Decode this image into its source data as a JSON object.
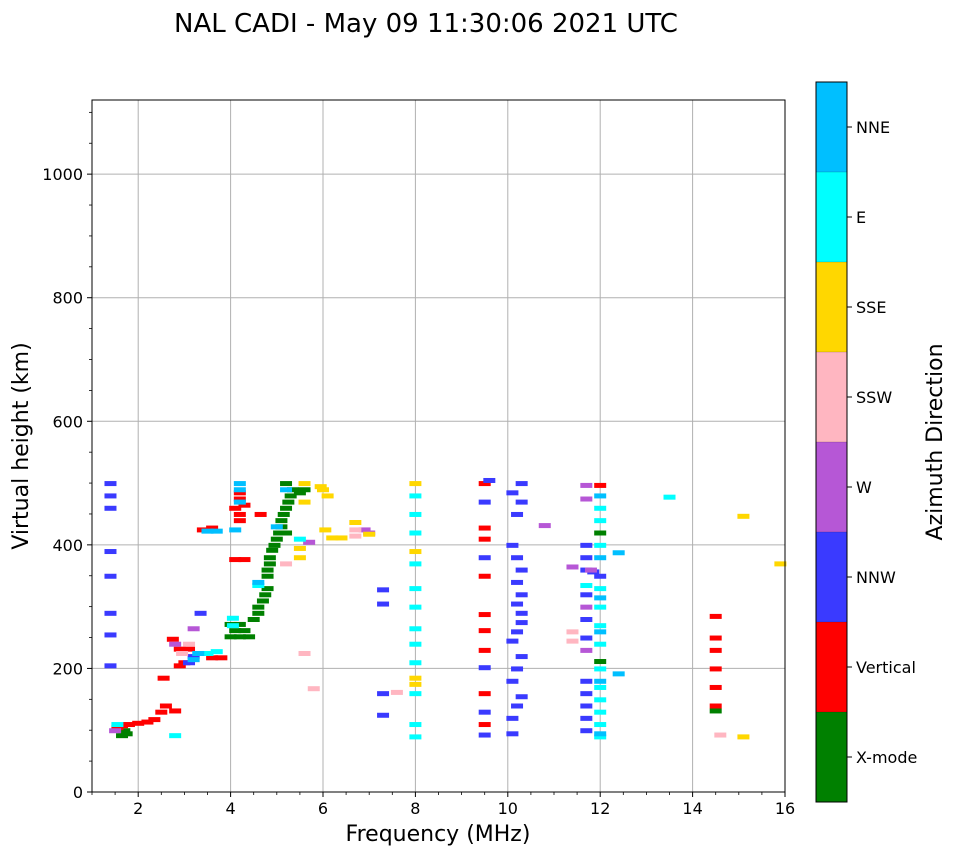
{
  "chart_data": {
    "type": "scatter",
    "title": "NAL CADI - May 09 11:30:06 2021 UTC",
    "xlabel": "Frequency (MHz)",
    "ylabel": "Virtual height (km)",
    "xlim": [
      1,
      16
    ],
    "ylim": [
      0,
      1120
    ],
    "xticks": [
      2,
      4,
      6,
      8,
      10,
      12,
      14,
      16
    ],
    "yticks": [
      0,
      200,
      400,
      600,
      800,
      1000
    ],
    "grid": true,
    "colorbar": {
      "label": "Azimuth Direction",
      "categories": [
        {
          "name": "X-mode",
          "color": "#008000"
        },
        {
          "name": "Vertical",
          "color": "#ff0000"
        },
        {
          "name": "NNW",
          "color": "#3a3aff"
        },
        {
          "name": "W",
          "color": "#b657d6"
        },
        {
          "name": "SSW",
          "color": "#ffb6c1"
        },
        {
          "name": "SSE",
          "color": "#ffd700"
        },
        {
          "name": "E",
          "color": "#00ffff"
        },
        {
          "name": "NNE",
          "color": "#00bfff"
        }
      ]
    },
    "series": [
      {
        "name": "X-mode",
        "points": [
          [
            1.65,
            92
          ],
          [
            1.75,
            95
          ],
          [
            1.7,
            100
          ],
          [
            4.0,
            252
          ],
          [
            4.2,
            252
          ],
          [
            4.4,
            252
          ],
          [
            4.1,
            262
          ],
          [
            4.3,
            262
          ],
          [
            4.0,
            272
          ],
          [
            4.2,
            272
          ],
          [
            4.5,
            280
          ],
          [
            4.6,
            290
          ],
          [
            4.6,
            300
          ],
          [
            4.7,
            310
          ],
          [
            4.75,
            320
          ],
          [
            4.8,
            330
          ],
          [
            4.8,
            350
          ],
          [
            4.8,
            360
          ],
          [
            4.85,
            370
          ],
          [
            4.85,
            380
          ],
          [
            4.9,
            392
          ],
          [
            4.95,
            400
          ],
          [
            5.0,
            410
          ],
          [
            5.05,
            420
          ],
          [
            5.1,
            430
          ],
          [
            5.1,
            440
          ],
          [
            5.15,
            450
          ],
          [
            5.2,
            460
          ],
          [
            5.25,
            470
          ],
          [
            5.3,
            480
          ],
          [
            5.35,
            490
          ],
          [
            5.2,
            500
          ],
          [
            5.5,
            485
          ],
          [
            5.6,
            490
          ],
          [
            5.2,
            420
          ],
          [
            14.5,
            132
          ],
          [
            12.0,
            420
          ],
          [
            12.0,
            212
          ]
        ]
      },
      {
        "name": "Vertical",
        "points": [
          [
            1.55,
            105
          ],
          [
            1.65,
            108
          ],
          [
            1.8,
            110
          ],
          [
            2.0,
            112
          ],
          [
            2.2,
            114
          ],
          [
            2.35,
            118
          ],
          [
            2.5,
            130
          ],
          [
            2.55,
            185
          ],
          [
            2.6,
            140
          ],
          [
            2.8,
            132
          ],
          [
            2.9,
            205
          ],
          [
            3.0,
            210
          ],
          [
            2.9,
            232
          ],
          [
            3.1,
            232
          ],
          [
            2.75,
            248
          ],
          [
            3.6,
            218
          ],
          [
            3.8,
            218
          ],
          [
            3.4,
            425
          ],
          [
            3.6,
            428
          ],
          [
            4.2,
            440
          ],
          [
            4.2,
            450
          ],
          [
            4.1,
            460
          ],
          [
            4.3,
            465
          ],
          [
            4.2,
            475
          ],
          [
            4.2,
            485
          ],
          [
            4.1,
            377
          ],
          [
            4.3,
            377
          ],
          [
            4.65,
            450
          ],
          [
            9.5,
            110
          ],
          [
            9.5,
            160
          ],
          [
            9.5,
            230
          ],
          [
            9.5,
            262
          ],
          [
            9.5,
            288
          ],
          [
            9.5,
            350
          ],
          [
            9.5,
            410
          ],
          [
            9.5,
            428
          ],
          [
            9.5,
            500
          ],
          [
            12.0,
            497
          ],
          [
            14.5,
            140
          ],
          [
            14.5,
            170
          ],
          [
            14.5,
            200
          ],
          [
            14.5,
            230
          ],
          [
            14.5,
            250
          ],
          [
            14.5,
            285
          ]
        ]
      },
      {
        "name": "NNW",
        "points": [
          [
            1.4,
            460
          ],
          [
            1.4,
            480
          ],
          [
            1.4,
            500
          ],
          [
            1.4,
            390
          ],
          [
            1.4,
            350
          ],
          [
            1.4,
            290
          ],
          [
            1.4,
            255
          ],
          [
            1.4,
            205
          ],
          [
            3.1,
            210
          ],
          [
            3.2,
            220
          ],
          [
            3.35,
            290
          ],
          [
            7.3,
            125
          ],
          [
            7.3,
            160
          ],
          [
            7.3,
            305
          ],
          [
            7.3,
            328
          ],
          [
            9.5,
            93
          ],
          [
            9.5,
            130
          ],
          [
            9.5,
            202
          ],
          [
            9.5,
            380
          ],
          [
            9.5,
            470
          ],
          [
            9.6,
            505
          ],
          [
            10.1,
            95
          ],
          [
            10.1,
            120
          ],
          [
            10.2,
            140
          ],
          [
            10.3,
            155
          ],
          [
            10.1,
            180
          ],
          [
            10.2,
            200
          ],
          [
            10.3,
            220
          ],
          [
            10.1,
            245
          ],
          [
            10.2,
            260
          ],
          [
            10.3,
            275
          ],
          [
            10.3,
            290
          ],
          [
            10.2,
            305
          ],
          [
            10.3,
            320
          ],
          [
            10.2,
            340
          ],
          [
            10.3,
            360
          ],
          [
            10.2,
            380
          ],
          [
            10.1,
            400
          ],
          [
            10.2,
            450
          ],
          [
            10.3,
            470
          ],
          [
            10.1,
            485
          ],
          [
            10.3,
            500
          ],
          [
            11.7,
            100
          ],
          [
            11.7,
            120
          ],
          [
            11.7,
            140
          ],
          [
            11.7,
            160
          ],
          [
            11.7,
            180
          ],
          [
            11.7,
            250
          ],
          [
            11.7,
            280
          ],
          [
            11.7,
            320
          ],
          [
            11.7,
            360
          ],
          [
            11.7,
            380
          ],
          [
            11.7,
            400
          ],
          [
            11.85,
            357
          ],
          [
            12.0,
            350
          ]
        ]
      },
      {
        "name": "W",
        "points": [
          [
            1.5,
            100
          ],
          [
            2.8,
            240
          ],
          [
            3.2,
            265
          ],
          [
            5.7,
            405
          ],
          [
            6.9,
            425
          ],
          [
            7.0,
            420
          ],
          [
            10.8,
            432
          ],
          [
            11.4,
            365
          ],
          [
            11.7,
            300
          ],
          [
            11.7,
            230
          ],
          [
            11.7,
            475
          ],
          [
            11.7,
            497
          ],
          [
            11.8,
            360
          ]
        ]
      },
      {
        "name": "SSW",
        "points": [
          [
            2.95,
            225
          ],
          [
            3.1,
            240
          ],
          [
            5.2,
            370
          ],
          [
            5.6,
            225
          ],
          [
            6.7,
            415
          ],
          [
            6.7,
            425
          ],
          [
            7.6,
            162
          ],
          [
            11.4,
            245
          ],
          [
            11.4,
            260
          ],
          [
            14.6,
            93
          ],
          [
            5.8,
            168
          ]
        ]
      },
      {
        "name": "SSE",
        "points": [
          [
            5.6,
            500
          ],
          [
            5.95,
            495
          ],
          [
            6.0,
            490
          ],
          [
            6.1,
            480
          ],
          [
            6.05,
            425
          ],
          [
            6.2,
            412
          ],
          [
            6.4,
            412
          ],
          [
            6.7,
            437
          ],
          [
            7.0,
            418
          ],
          [
            8.0,
            500
          ],
          [
            8.0,
            390
          ],
          [
            8.0,
            185
          ],
          [
            8.0,
            175
          ],
          [
            15.1,
            90
          ],
          [
            15.1,
            447
          ],
          [
            15.9,
            370
          ],
          [
            5.5,
            380
          ],
          [
            5.5,
            395
          ],
          [
            5.6,
            470
          ]
        ]
      },
      {
        "name": "E",
        "points": [
          [
            1.55,
            110
          ],
          [
            2.8,
            92
          ],
          [
            3.5,
            225
          ],
          [
            3.7,
            228
          ],
          [
            4.05,
            270
          ],
          [
            4.05,
            282
          ],
          [
            4.6,
            335
          ],
          [
            5.5,
            410
          ],
          [
            8.0,
            90
          ],
          [
            8.0,
            110
          ],
          [
            8.0,
            160
          ],
          [
            8.0,
            210
          ],
          [
            8.0,
            240
          ],
          [
            8.0,
            265
          ],
          [
            8.0,
            300
          ],
          [
            8.0,
            330
          ],
          [
            8.0,
            370
          ],
          [
            8.0,
            420
          ],
          [
            8.0,
            450
          ],
          [
            8.0,
            480
          ],
          [
            12.0,
            90
          ],
          [
            12.0,
            110
          ],
          [
            12.0,
            130
          ],
          [
            12.0,
            150
          ],
          [
            12.0,
            170
          ],
          [
            12.0,
            200
          ],
          [
            12.0,
            240
          ],
          [
            12.0,
            270
          ],
          [
            12.0,
            300
          ],
          [
            12.0,
            330
          ],
          [
            12.0,
            400
          ],
          [
            12.0,
            440
          ],
          [
            12.0,
            460
          ],
          [
            11.7,
            335
          ],
          [
            13.5,
            478
          ]
        ]
      },
      {
        "name": "NNE",
        "points": [
          [
            3.2,
            215
          ],
          [
            3.3,
            225
          ],
          [
            3.5,
            423
          ],
          [
            3.7,
            423
          ],
          [
            4.2,
            490
          ],
          [
            4.2,
            500
          ],
          [
            4.2,
            470
          ],
          [
            4.1,
            425
          ],
          [
            4.6,
            340
          ],
          [
            5.0,
            430
          ],
          [
            5.2,
            490
          ],
          [
            12.0,
            95
          ],
          [
            12.0,
            180
          ],
          [
            12.0,
            260
          ],
          [
            12.0,
            315
          ],
          [
            12.0,
            380
          ],
          [
            12.0,
            480
          ],
          [
            12.4,
            192
          ],
          [
            12.4,
            388
          ]
        ]
      }
    ]
  }
}
